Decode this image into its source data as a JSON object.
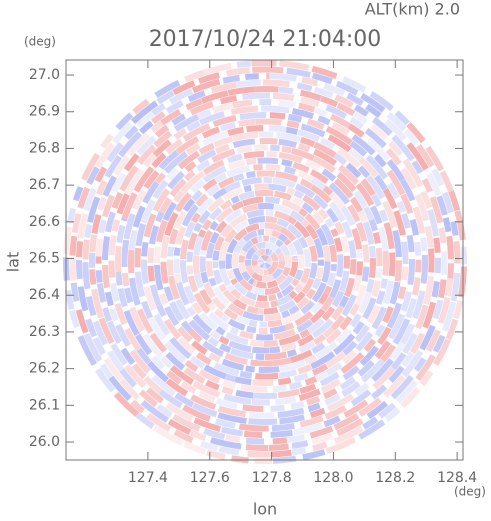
{
  "chart_data": {
    "type": "ppi",
    "title": "2017/10/24 21:04:00",
    "annotation": "ALT(km) 2.0",
    "xlabel": "lon",
    "ylabel": "lat",
    "xunit": "(deg)",
    "yunit": "(deg)",
    "colors": [
      "#f08a8a",
      "#9aa4f2"
    ],
    "xlim": [
      127.135,
      128.419
    ],
    "ylim": [
      25.951,
      27.041
    ],
    "xticks": [
      127.4,
      127.6,
      127.8,
      {
        "value": 128.0,
        "label": "128.0"
      },
      128.2,
      128.4
    ],
    "yticks": [
      {
        "value": 26.0,
        "label": "26.0"
      },
      26.1,
      26.2,
      26.3,
      26.4,
      26.5,
      26.6,
      26.7,
      26.8,
      26.9,
      {
        "value": 27.0,
        "label": "27.0"
      }
    ]
  }
}
